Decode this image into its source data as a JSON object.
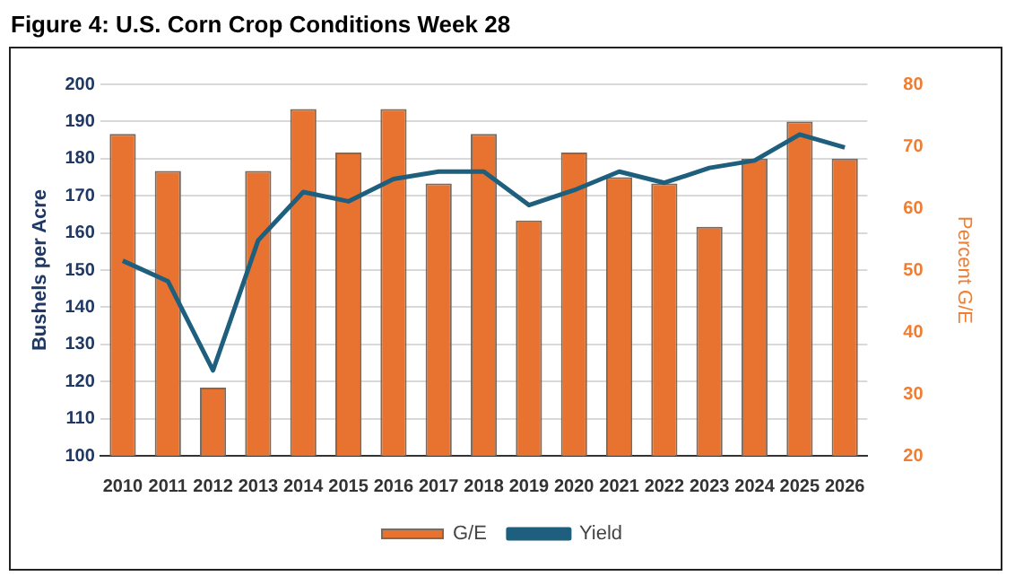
{
  "chart_data": {
    "type": "bar",
    "title": "Figure 4: U.S. Corn Crop Conditions Week 28",
    "categories": [
      "2010",
      "2011",
      "2012",
      "2013",
      "2014",
      "2015",
      "2016",
      "2017",
      "2018",
      "2019",
      "2020",
      "2021",
      "2022",
      "2023",
      "2024",
      "2025",
      "2026"
    ],
    "series": [
      {
        "name": "G/E",
        "axis": "y2",
        "color": "#e87330",
        "values": [
          72,
          66,
          31,
          66,
          76,
          69,
          76,
          64,
          72,
          58,
          69,
          65,
          64,
          57,
          68,
          74,
          68
        ]
      },
      {
        "name": "Yield",
        "type": "line",
        "color": "#1f5f7e",
        "values": [
          152.5,
          147,
          123,
          158,
          171,
          168.5,
          174.5,
          176.5,
          176.5,
          167.5,
          171.5,
          176.5,
          173.5,
          177.5,
          179.5,
          186.5,
          183
        ]
      }
    ],
    "ylabel": "Bushels per Acre",
    "y2label": "Percent G/E",
    "ylim": [
      100,
      200
    ],
    "yticks": [
      100,
      110,
      120,
      130,
      140,
      150,
      160,
      170,
      180,
      190,
      200
    ],
    "y2lim": [
      20,
      80
    ],
    "y2ticks": [
      20,
      30,
      40,
      50,
      60,
      70,
      80
    ],
    "grid": "y",
    "legend": "bottom",
    "marker": "none",
    "line_style": "solid"
  }
}
